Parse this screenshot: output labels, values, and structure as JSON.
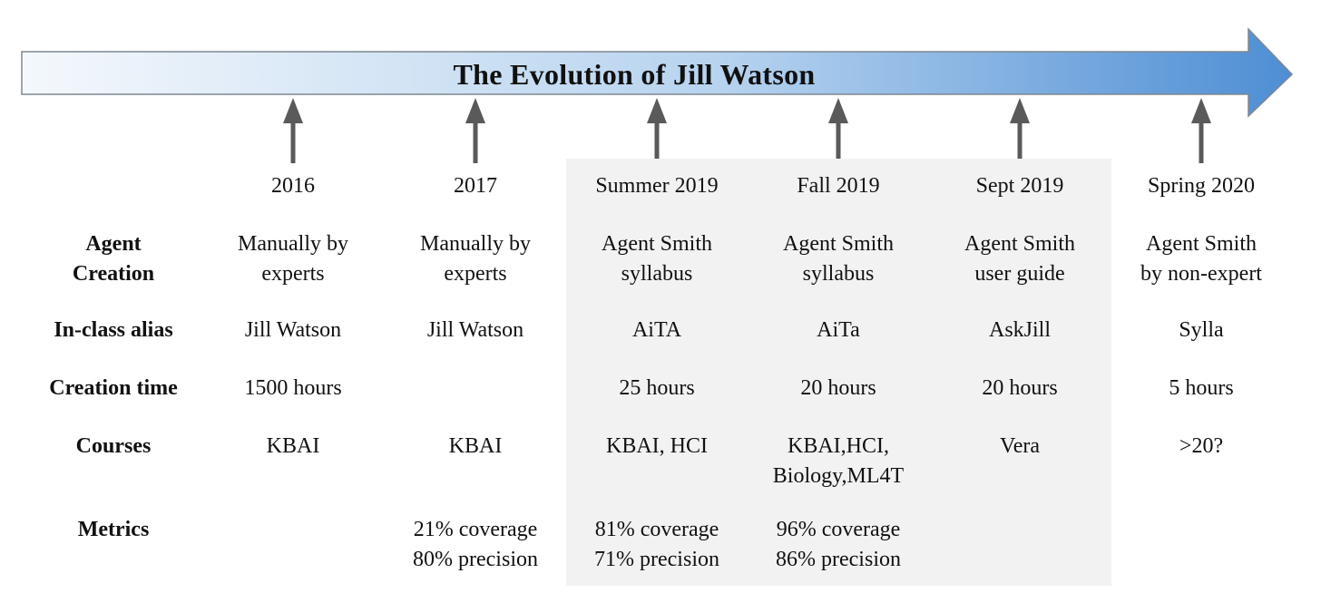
{
  "diagram": {
    "title": "The Evolution of Jill Watson",
    "colors": {
      "arrow_start": "#f4f8fc",
      "arrow_end": "#4e8ed4",
      "arrow_stroke": "#7e8790",
      "pointer": "#5a5a5a",
      "shade": "#f2f2f2"
    },
    "row_labels": {
      "agent_creation": [
        "Agent",
        "Creation"
      ],
      "alias": "In-class alias",
      "creation_time": "Creation time",
      "courses": "Courses",
      "metrics": "Metrics"
    },
    "milestones": [
      {
        "date": "2016",
        "agent_creation": [
          "Manually by",
          "experts"
        ],
        "alias": "Jill Watson",
        "creation_time": "1500 hours",
        "courses": [
          "KBAI"
        ],
        "metrics": []
      },
      {
        "date": "2017",
        "agent_creation": [
          "Manually by",
          "experts"
        ],
        "alias": "Jill Watson",
        "creation_time": "",
        "courses": [
          "KBAI"
        ],
        "metrics": [
          "21% coverage",
          "80% precision"
        ]
      },
      {
        "date": "Summer 2019",
        "agent_creation": [
          "Agent Smith",
          "syllabus"
        ],
        "alias": "AiTA",
        "creation_time": "25 hours",
        "courses": [
          "KBAI, HCI"
        ],
        "metrics": [
          "81% coverage",
          "71% precision"
        ]
      },
      {
        "date": "Fall 2019",
        "agent_creation": [
          "Agent Smith",
          "syllabus"
        ],
        "alias": "AiTa",
        "creation_time": "20 hours",
        "courses": [
          "KBAI,HCI,",
          "Biology,ML4T"
        ],
        "metrics": [
          "96% coverage",
          "86% precision"
        ]
      },
      {
        "date": "Sept 2019",
        "agent_creation": [
          "Agent Smith",
          "user guide"
        ],
        "alias": "AskJill",
        "creation_time": "20 hours",
        "courses": [
          "Vera"
        ],
        "metrics": []
      },
      {
        "date": "Spring 2020",
        "agent_creation": [
          "Agent Smith",
          "by non-expert"
        ],
        "alias": "Sylla",
        "creation_time": "5 hours",
        "courses": [
          ">20?"
        ],
        "metrics": []
      }
    ]
  }
}
